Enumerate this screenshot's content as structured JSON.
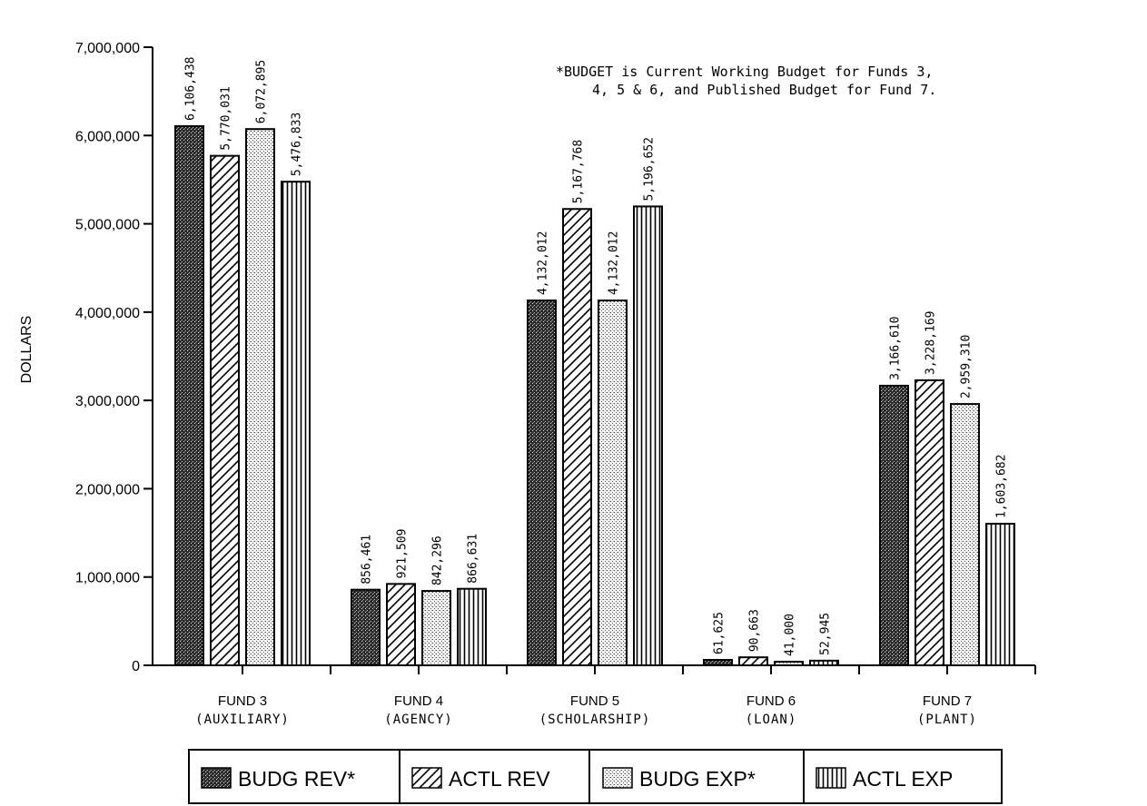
{
  "chart_data": {
    "type": "bar",
    "ylabel": "DOLLARS",
    "ylim": [
      0,
      7000000
    ],
    "yticks": [
      "0",
      "1,000,000",
      "2,000,000",
      "3,000,000",
      "4,000,000",
      "5,000,000",
      "6,000,000",
      "7,000,000"
    ],
    "categories": [
      {
        "line1": "FUND 3",
        "line2": "(AUXILIARY)"
      },
      {
        "line1": "FUND 4",
        "line2": "(AGENCY)"
      },
      {
        "line1": "FUND 5",
        "line2": "(SCHOLARSHIP)"
      },
      {
        "line1": "FUND 6",
        "line2": "(LOAN)"
      },
      {
        "line1": "FUND 7",
        "line2": "(PLANT)"
      }
    ],
    "series": [
      {
        "name": "BUDG REV*",
        "pattern": "dark-stipple",
        "values": [
          6106438,
          856461,
          4132012,
          61625,
          3166610
        ],
        "labels": [
          "6,106,438",
          "856,461",
          "4,132,012",
          "61,625",
          "3,166,610"
        ]
      },
      {
        "name": "ACTL REV",
        "pattern": "diagonal-hatch",
        "values": [
          5770031,
          921509,
          5167768,
          90663,
          3228169
        ],
        "labels": [
          "5,770,031",
          "921,509",
          "5,167,768",
          "90,663",
          "3,228,169"
        ]
      },
      {
        "name": "BUDG EXP*",
        "pattern": "light-stipple",
        "values": [
          6072895,
          842296,
          4132012,
          41000,
          2959310
        ],
        "labels": [
          "6,072,895",
          "842,296",
          "4,132,012",
          "41,000",
          "2,959,310"
        ]
      },
      {
        "name": "ACTL EXP",
        "pattern": "vertical-lines",
        "values": [
          5476833,
          866631,
          5196652,
          52945,
          1603682
        ],
        "labels": [
          "5,476,833",
          "866,631",
          "5,196,652",
          "52,945",
          "1,603,682"
        ]
      }
    ],
    "annotation": {
      "line1": "*BUDGET is Current Working Budget for Funds 3,",
      "line2": "4, 5 & 6, and Published Budget for Fund 7."
    },
    "grid": false,
    "legend_position": "bottom"
  }
}
